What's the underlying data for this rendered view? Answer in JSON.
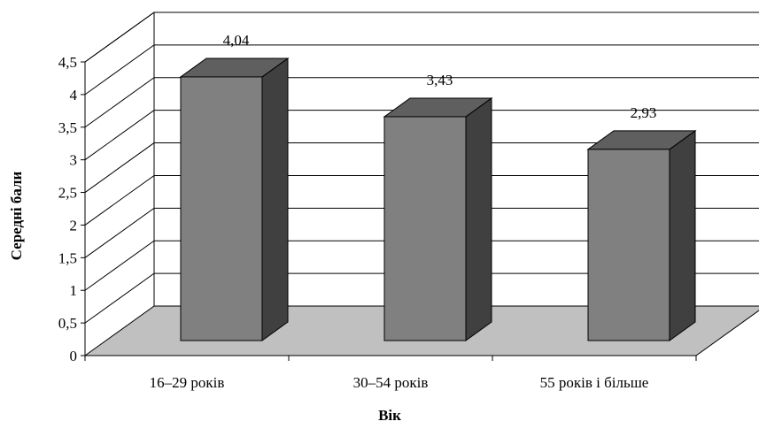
{
  "chart_data": {
    "type": "bar",
    "style": "3d-column",
    "categories": [
      "16–29 років",
      "30–54 років",
      "55 років і більше"
    ],
    "values": [
      4.04,
      3.43,
      2.93
    ],
    "value_labels": [
      "4,04",
      "3,43",
      "2,93"
    ],
    "xlabel": "Вік",
    "ylabel": "Середні бали",
    "ylim": [
      0,
      4.5
    ],
    "yticks": [
      "0",
      "0,5",
      "1",
      "1,5",
      "2",
      "2,5",
      "3",
      "3,5",
      "4",
      "4,5"
    ],
    "grid": true,
    "legend": "none",
    "colors": {
      "bar_front": "#808080",
      "bar_top": "#5f5f5f",
      "bar_side": "#404040",
      "floor": "#c0c0c0",
      "gridline": "#000000"
    }
  }
}
